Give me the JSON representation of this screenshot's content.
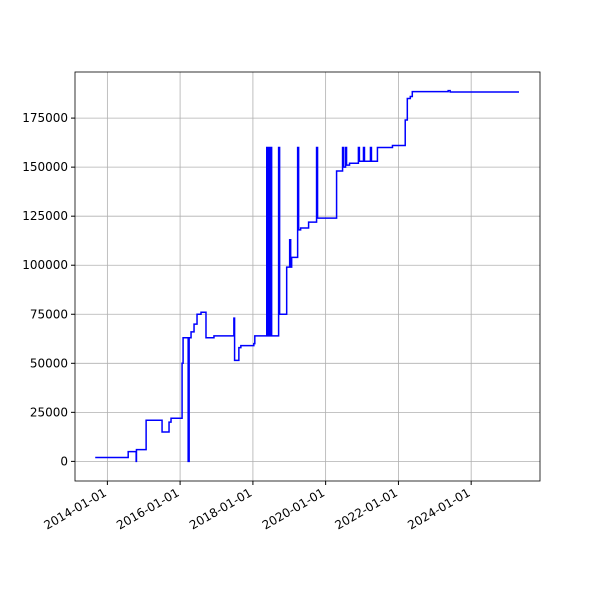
{
  "chart_data": {
    "type": "line",
    "step": "post",
    "grid": true,
    "xlim": [
      "2013-02-10",
      "2025-11-22"
    ],
    "xticks": [
      "2014-01-01",
      "2016-01-01",
      "2018-01-01",
      "2020-01-01",
      "2022-01-01",
      "2024-01-01"
    ],
    "ylim": [
      -10000,
      198500
    ],
    "yticks": [
      0,
      25000,
      50000,
      75000,
      100000,
      125000,
      150000,
      175000
    ],
    "series": [
      {
        "color": "#0000ff",
        "x": [
          "2013-09-01",
          "2014-07-29",
          "2014-10-17",
          "2014-10-20",
          "2015-01-25",
          "2015-07-04",
          "2015-09-12",
          "2015-10-02",
          "2016-01-21",
          "2016-01-31",
          "2016-03-22",
          "2016-04-01",
          "2016-04-20",
          "2016-05-20",
          "2016-06-19",
          "2016-07-29",
          "2016-09-17",
          "2016-12-06",
          "2017-06-24",
          "2017-07-01",
          "2017-08-13",
          "2017-09-02",
          "2018-01-10",
          "2018-01-20",
          "2018-05-20",
          "2018-05-29",
          "2018-06-08",
          "2018-06-18",
          "2018-06-28",
          "2018-07-08",
          "2018-09-16",
          "2018-09-26",
          "2018-12-06",
          "2019-01-05",
          "2019-01-15",
          "2019-01-25",
          "2019-03-26",
          "2019-04-05",
          "2019-04-25",
          "2019-07-14",
          "2019-10-02",
          "2019-10-12",
          "2020-04-20",
          "2020-06-19",
          "2020-06-29",
          "2020-07-19",
          "2020-07-29",
          "2020-08-28",
          "2020-11-25",
          "2020-12-05",
          "2021-01-15",
          "2021-01-25",
          "2021-03-26",
          "2021-04-05",
          "2021-06-04",
          "2021-11-02",
          "2022-03-10",
          "2022-03-31",
          "2022-04-30",
          "2022-05-20",
          "2023-05-15",
          "2023-06-04",
          "2025-04-25"
        ],
        "values": [
          2000,
          5000,
          0,
          6000,
          21000,
          15000,
          20000,
          22000,
          50000,
          63000,
          0,
          63000,
          66000,
          70000,
          75000,
          76000,
          63000,
          64000,
          73000,
          51500,
          58000,
          59000,
          60000,
          64000,
          160000,
          64000,
          160000,
          64000,
          160000,
          64000,
          160000,
          75000,
          99000,
          113000,
          99000,
          104000,
          160000,
          118000,
          119000,
          122000,
          160000,
          124000,
          148000,
          160000,
          150000,
          160000,
          151000,
          152000,
          160000,
          153000,
          160000,
          153000,
          160000,
          153000,
          160000,
          161000,
          174000,
          185000,
          186000,
          188500,
          189000,
          188300,
          188300
        ]
      }
    ]
  }
}
